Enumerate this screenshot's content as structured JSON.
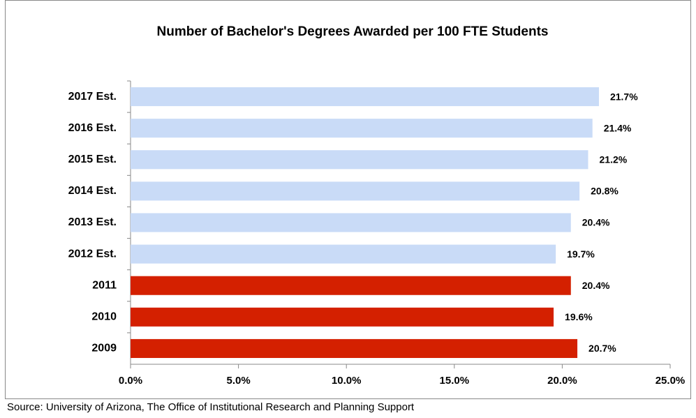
{
  "chart_data": {
    "type": "hbar",
    "title": "Number of Bachelor's Degrees Awarded per 100 FTE Students",
    "categories": [
      "2017 Est.",
      "2016 Est.",
      "2015 Est.",
      "2014 Est.",
      "2013 Est.",
      "2012 Est.",
      "2011",
      "2010",
      "2009"
    ],
    "values": [
      21.7,
      21.4,
      21.2,
      20.8,
      20.4,
      19.7,
      20.4,
      19.6,
      20.7
    ],
    "value_labels": [
      "21.7%",
      "21.4%",
      "21.2%",
      "20.8%",
      "20.4%",
      "19.7%",
      "20.4%",
      "19.6%",
      "20.7%"
    ],
    "colors": [
      "#c9dbf7",
      "#c9dbf7",
      "#c9dbf7",
      "#c9dbf7",
      "#c9dbf7",
      "#c9dbf7",
      "#d42000",
      "#d42000",
      "#d42000"
    ],
    "xlim": [
      0,
      25
    ],
    "xticks": [
      {
        "value": 0,
        "label": "0.0%"
      },
      {
        "value": 5,
        "label": "5.0%"
      },
      {
        "value": 10,
        "label": "10.0%"
      },
      {
        "value": 15,
        "label": "15.0%"
      },
      {
        "value": 20,
        "label": "20.0%"
      },
      {
        "value": 25,
        "label": "25.0%"
      }
    ],
    "source": "Source:  University of Arizona, The Office of Institutional Research and Planning Support"
  }
}
